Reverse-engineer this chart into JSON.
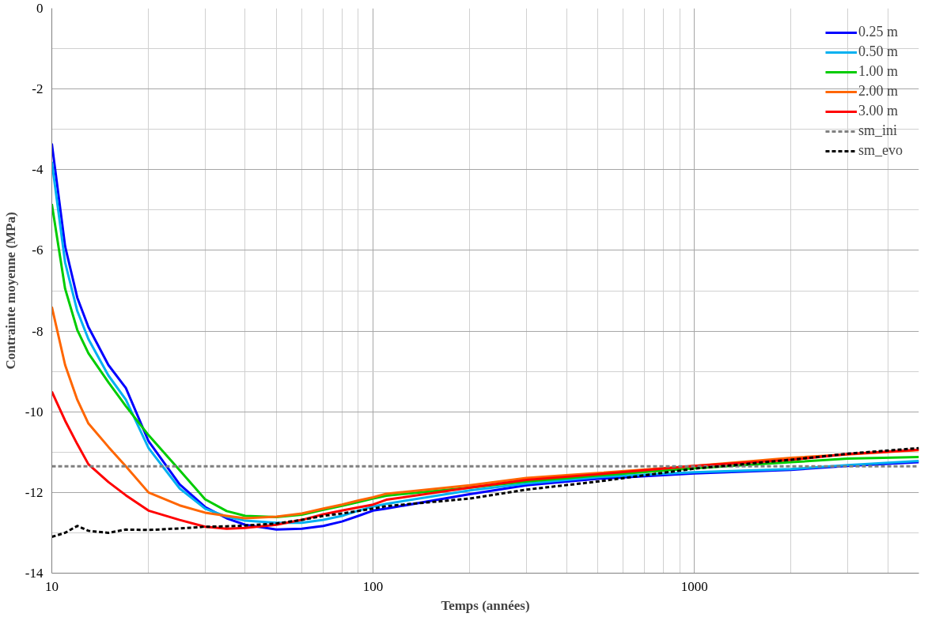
{
  "chart_data": {
    "type": "line",
    "xlabel": "Temps (années)",
    "ylabel": "Contrainte moyenne (MPa)",
    "log": "x",
    "xlim": [
      10,
      5000
    ],
    "xticks": [
      10,
      100,
      1000
    ],
    "ylim": [
      -14,
      0
    ],
    "yticks": [
      -14,
      -12,
      -10,
      -8,
      -6,
      -4,
      -2,
      0
    ],
    "grid": true,
    "legend": "top right",
    "marker": "none",
    "x": [
      10,
      11,
      12,
      13,
      15,
      17,
      20,
      25,
      30,
      35,
      40,
      50,
      60,
      70,
      80,
      90,
      100,
      110,
      200,
      300,
      500,
      1000,
      2000,
      3000,
      5000
    ],
    "series": [
      {
        "name": "0.25 m",
        "color": "#0000ff",
        "line_style": "solid",
        "values": [
          -3.35,
          -5.9,
          -7.17,
          -7.9,
          -8.84,
          -9.41,
          -10.73,
          -11.8,
          -12.36,
          -12.64,
          -12.8,
          -12.92,
          -12.9,
          -12.83,
          -12.72,
          -12.58,
          -12.45,
          -12.4,
          -12.04,
          -11.82,
          -11.66,
          -11.53,
          -11.44,
          -11.34,
          -11.25
        ]
      },
      {
        "name": "0.50 m",
        "color": "#00b0f0",
        "line_style": "solid",
        "values": [
          -3.8,
          -6.3,
          -7.5,
          -8.2,
          -9.1,
          -9.7,
          -10.9,
          -11.9,
          -12.4,
          -12.6,
          -12.7,
          -12.75,
          -12.75,
          -12.68,
          -12.58,
          -12.45,
          -12.35,
          -12.28,
          -11.95,
          -11.78,
          -11.62,
          -11.5,
          -11.42,
          -11.32,
          -11.22
        ]
      },
      {
        "name": "1.00 m",
        "color": "#00cc00",
        "line_style": "solid",
        "values": [
          -4.85,
          -6.95,
          -7.97,
          -8.55,
          -9.27,
          -9.86,
          -10.58,
          -11.45,
          -12.17,
          -12.46,
          -12.58,
          -12.61,
          -12.55,
          -12.43,
          -12.33,
          -12.24,
          -12.15,
          -12.08,
          -11.88,
          -11.73,
          -11.58,
          -11.4,
          -11.25,
          -11.16,
          -11.12
        ]
      },
      {
        "name": "2.00 m",
        "color": "#ff6600",
        "line_style": "solid",
        "values": [
          -7.4,
          -8.84,
          -9.7,
          -10.29,
          -10.87,
          -11.35,
          -12.0,
          -12.32,
          -12.5,
          -12.58,
          -12.64,
          -12.6,
          -12.52,
          -12.4,
          -12.3,
          -12.2,
          -12.12,
          -12.03,
          -11.82,
          -11.64,
          -11.52,
          -11.34,
          -11.14,
          -11.06,
          -10.95
        ]
      },
      {
        "name": "3.00 m",
        "color": "#ff0000",
        "line_style": "solid",
        "values": [
          -9.5,
          -10.22,
          -10.8,
          -11.3,
          -11.74,
          -12.07,
          -12.45,
          -12.68,
          -12.85,
          -12.9,
          -12.88,
          -12.8,
          -12.68,
          -12.54,
          -12.45,
          -12.37,
          -12.3,
          -12.18,
          -11.88,
          -11.69,
          -11.55,
          -11.34,
          -11.19,
          -11.05,
          -10.94
        ]
      },
      {
        "name": "sm_ini",
        "color": "#808080",
        "line_style": "dashed",
        "x": [
          10,
          5000
        ],
        "values": [
          -11.35,
          -11.35
        ]
      },
      {
        "name": "sm_evo",
        "color": "#000000",
        "line_style": "dashed",
        "values": [
          -13.1,
          -13.0,
          -12.83,
          -12.95,
          -13.0,
          -12.92,
          -12.93,
          -12.89,
          -12.85,
          -12.84,
          -12.82,
          -12.77,
          -12.68,
          -12.58,
          -12.52,
          -12.46,
          -12.4,
          -12.34,
          -12.15,
          -11.93,
          -11.73,
          -11.41,
          -11.19,
          -11.04,
          -10.9
        ]
      }
    ]
  }
}
